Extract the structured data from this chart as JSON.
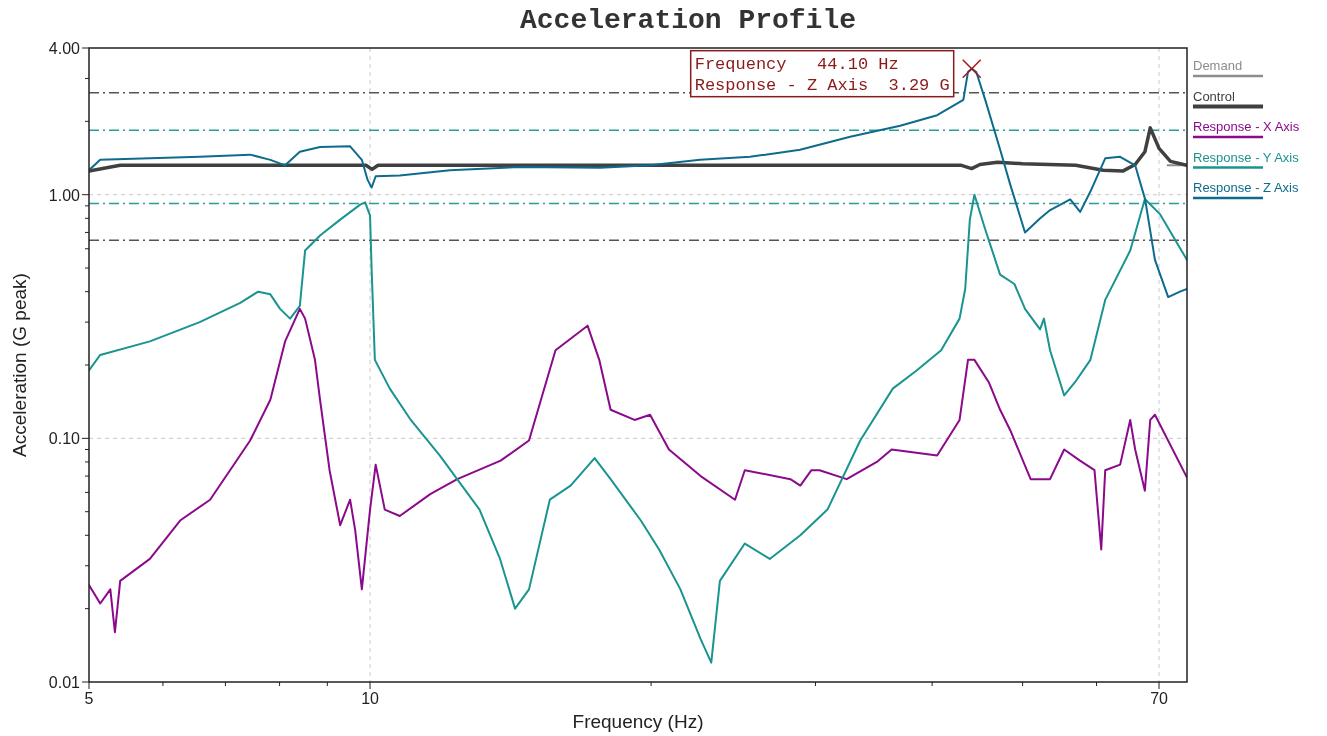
{
  "chart_data": {
    "type": "line",
    "title": "Acceleration Profile",
    "xlabel": "Frequency (Hz)",
    "ylabel": "Acceleration (G peak)",
    "log": "xy",
    "xlim": [
      5,
      75
    ],
    "ylim": [
      0.01,
      4
    ],
    "xticks": [
      5,
      {
        "value": 6,
        "label": null
      },
      {
        "value": 7,
        "label": null
      },
      {
        "value": 8,
        "label": null
      },
      {
        "value": 9,
        "label": null
      },
      10,
      {
        "value": 20,
        "label": null
      },
      {
        "value": 30,
        "label": null
      },
      {
        "value": 40,
        "label": null
      },
      {
        "value": 50,
        "label": null
      },
      {
        "value": 60,
        "label": null
      },
      70
    ],
    "yticks": [
      {
        "value": 0.01,
        "label": "0.01"
      },
      {
        "value": 0.02,
        "label": null
      },
      {
        "value": 0.03,
        "label": null
      },
      {
        "value": 0.04,
        "label": null
      },
      {
        "value": 0.05,
        "label": null
      },
      {
        "value": 0.06,
        "label": null
      },
      {
        "value": 0.07,
        "label": null
      },
      {
        "value": 0.08,
        "label": null
      },
      {
        "value": 0.09,
        "label": null
      },
      {
        "value": 0.1,
        "label": "0.10"
      },
      {
        "value": 0.2,
        "label": null
      },
      {
        "value": 0.3,
        "label": null
      },
      {
        "value": 0.4,
        "label": null
      },
      {
        "value": 0.5,
        "label": null
      },
      {
        "value": 0.6,
        "label": null
      },
      {
        "value": 0.7,
        "label": null
      },
      {
        "value": 0.8,
        "label": null
      },
      {
        "value": 0.9,
        "label": null
      },
      {
        "value": 1,
        "label": "1.00"
      },
      {
        "value": 2,
        "label": null
      },
      {
        "value": 3,
        "label": null
      },
      {
        "value": 4,
        "label": "4.00"
      }
    ],
    "grid": true,
    "legend": "right",
    "ref_lines": [
      {
        "axis": "y",
        "value": 2.62,
        "color": "#555555",
        "line_style": "dashdot"
      },
      {
        "axis": "y",
        "value": 1.84,
        "color": "#2a9d9a",
        "line_style": "dashdot"
      },
      {
        "axis": "y",
        "value": 0.92,
        "color": "#2a9d9a",
        "line_style": "dashdot"
      },
      {
        "axis": "y",
        "value": 0.65,
        "color": "#555555",
        "line_style": "dashdot"
      }
    ],
    "annotations": [
      {
        "text": "Frequency   44.10 Hz\nResponse - Z Axis  3.29 G",
        "x": 44.1,
        "y": 3.29
      }
    ],
    "series": [
      {
        "name": "Demand",
        "color": "#8c8c8c",
        "x": [
          71.5,
          75
        ],
        "values": [
          1.32,
          1.32
        ]
      },
      {
        "name": "Control",
        "color": "#404040",
        "x": [
          5,
          5.4,
          9.9,
          10.05,
          10.2,
          43,
          44.1,
          45,
          47,
          50,
          57,
          61,
          64,
          66,
          67.6,
          68.5,
          70,
          72,
          75
        ],
        "values": [
          1.25,
          1.32,
          1.32,
          1.27,
          1.32,
          1.32,
          1.28,
          1.33,
          1.36,
          1.34,
          1.32,
          1.26,
          1.25,
          1.33,
          1.5,
          1.88,
          1.55,
          1.37,
          1.32
        ]
      },
      {
        "name": "Response - X Axis",
        "color": "#8b0a8b",
        "x": [
          5,
          5.14,
          5.27,
          5.33,
          5.4,
          5.81,
          6.26,
          6.74,
          7.08,
          7.44,
          7.82,
          8.11,
          8.41,
          8.52,
          8.73,
          8.84,
          9.05,
          9.29,
          9.52,
          9.64,
          9.8,
          10,
          10.14,
          10.37,
          10.76,
          11.6,
          12.4,
          13.8,
          14.8,
          15.8,
          17.1,
          17.6,
          18.1,
          19.2,
          19.95,
          20.9,
          22.6,
          24.6,
          25.2,
          28.2,
          28.9,
          29.7,
          30.3,
          32.4,
          34.9,
          36.2,
          40.5,
          42.8,
          43.7,
          44.4,
          46,
          47.3,
          48.5,
          51,
          53.5,
          55.4,
          57.6,
          59.7,
          60.7,
          61.3,
          63.6,
          65.2,
          66,
          67.6,
          68.5,
          69.3,
          75
        ],
        "values": [
          0.025,
          0.021,
          0.024,
          0.016,
          0.026,
          0.032,
          0.046,
          0.056,
          0.074,
          0.098,
          0.144,
          0.25,
          0.34,
          0.31,
          0.21,
          0.144,
          0.074,
          0.044,
          0.056,
          0.042,
          0.024,
          0.051,
          0.078,
          0.051,
          0.048,
          0.059,
          0.068,
          0.081,
          0.098,
          0.23,
          0.29,
          0.21,
          0.131,
          0.119,
          0.125,
          0.09,
          0.07,
          0.056,
          0.074,
          0.068,
          0.064,
          0.074,
          0.074,
          0.068,
          0.08,
          0.09,
          0.085,
          0.119,
          0.21,
          0.21,
          0.17,
          0.131,
          0.108,
          0.068,
          0.068,
          0.09,
          0.081,
          0.074,
          0.035,
          0.074,
          0.078,
          0.119,
          0.09,
          0.061,
          0.119,
          0.125,
          0.069
        ]
      },
      {
        "name": "Response - Y Axis",
        "color": "#1a9490",
        "x": [
          5,
          5.14,
          5.81,
          6.57,
          7.26,
          7.59,
          7.82,
          8.01,
          8.21,
          8.41,
          8.52,
          8.84,
          9.29,
          9.76,
          9.88,
          10,
          10.04,
          10.12,
          10.5,
          11.04,
          11.88,
          13.1,
          13.78,
          14.3,
          14.8,
          15.58,
          16.4,
          17.4,
          18.1,
          19.5,
          20.4,
          21.5,
          22.6,
          23.2,
          23.7,
          25.2,
          26.8,
          28.9,
          30.9,
          33.5,
          36.3,
          38.5,
          40.9,
          42.8,
          43.4,
          43.9,
          44.4,
          45.6,
          47.3,
          49,
          50.3,
          52.2,
          52.7,
          53.5,
          55.4,
          56.9,
          59.1,
          61.3,
          65.2,
          67.6,
          70.2,
          75
        ],
        "values": [
          0.19,
          0.22,
          0.25,
          0.3,
          0.36,
          0.4,
          0.39,
          0.34,
          0.31,
          0.35,
          0.59,
          0.68,
          0.79,
          0.91,
          0.93,
          0.82,
          0.49,
          0.21,
          0.16,
          0.12,
          0.085,
          0.051,
          0.032,
          0.02,
          0.024,
          0.056,
          0.064,
          0.083,
          0.068,
          0.046,
          0.035,
          0.024,
          0.015,
          0.012,
          0.026,
          0.037,
          0.032,
          0.04,
          0.051,
          0.098,
          0.16,
          0.19,
          0.23,
          0.31,
          0.41,
          0.79,
          1.0,
          0.72,
          0.47,
          0.43,
          0.34,
          0.28,
          0.31,
          0.23,
          0.15,
          0.17,
          0.21,
          0.37,
          0.59,
          0.96,
          0.83,
          0.54
        ]
      },
      {
        "name": "Response - Z Axis",
        "color": "#0e6b8c",
        "x": [
          5,
          5.14,
          6.57,
          7.44,
          7.82,
          8.11,
          8.41,
          8.84,
          9.52,
          9.8,
          9.94,
          10.04,
          10.14,
          10.76,
          12.18,
          14.48,
          17.64,
          19.95,
          22.57,
          25.53,
          28.88,
          32.68,
          36.97,
          40.5,
          43.2,
          43.7,
          44.1,
          44.6,
          45.6,
          47.31,
          48.5,
          50.3,
          52.22,
          53.52,
          56.23,
          57.63,
          59.1,
          61.3,
          63.6,
          66,
          67.64,
          69.3,
          71.6,
          73.7,
          75
        ],
        "values": [
          1.26,
          1.39,
          1.43,
          1.46,
          1.39,
          1.32,
          1.5,
          1.57,
          1.58,
          1.39,
          1.15,
          1.07,
          1.19,
          1.2,
          1.26,
          1.3,
          1.29,
          1.32,
          1.39,
          1.43,
          1.53,
          1.73,
          1.92,
          2.12,
          2.45,
          3.19,
          3.29,
          3.19,
          2.45,
          1.53,
          1.1,
          0.7,
          0.8,
          0.865,
          0.957,
          0.85,
          1.03,
          1.41,
          1.43,
          1.32,
          0.957,
          0.54,
          0.38,
          0.4,
          0.41
        ]
      }
    ]
  }
}
